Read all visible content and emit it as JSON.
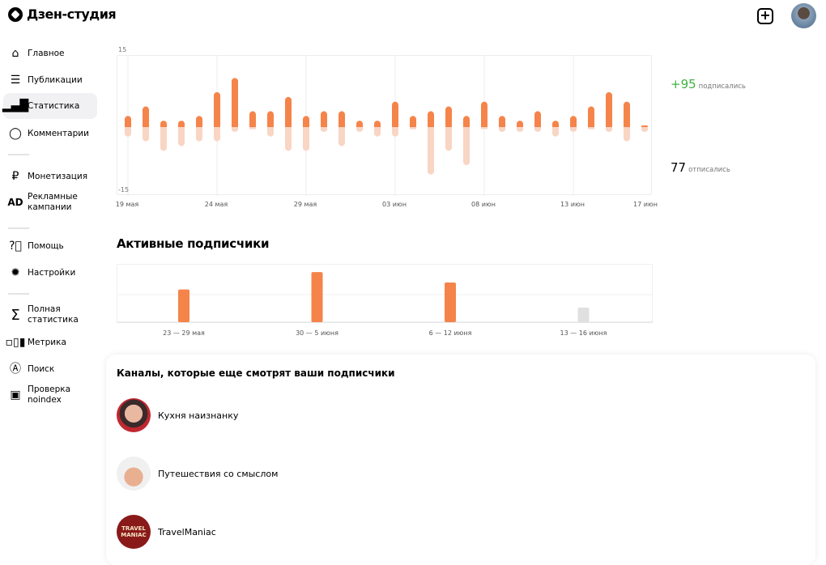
{
  "app": {
    "title": "Дзен-студия"
  },
  "sidebar": {
    "items": [
      {
        "label": "Главное",
        "icon": "home-icon"
      },
      {
        "label": "Публикации",
        "icon": "publications-icon"
      },
      {
        "label": "Статистика",
        "icon": "bar-chart-icon",
        "active": true
      },
      {
        "label": "Комментарии",
        "icon": "comment-icon"
      },
      {
        "label": "Монетизация",
        "icon": "ruble-icon"
      },
      {
        "label": "Рекламные кампании",
        "icon": "ad-icon"
      },
      {
        "label": "Помощь",
        "icon": "help-icon"
      },
      {
        "label": "Настройки",
        "icon": "gear-icon"
      },
      {
        "label": "Полная статистика",
        "icon": "sigma-icon"
      },
      {
        "label": "Метрика",
        "icon": "metrika-icon"
      },
      {
        "label": "Поиск",
        "icon": "search-icon"
      },
      {
        "label": "Проверка noindex",
        "icon": "noindex-icon"
      }
    ]
  },
  "header": {
    "add_icon": "plus-square-icon",
    "avatar": "user-avatar"
  },
  "summary": {
    "subscribed_value": "+95",
    "subscribed_label": "подписались",
    "unsubscribed_value": "77",
    "unsubscribed_label": "отписались",
    "subscribed_color": "#3fb142"
  },
  "chart_data": [
    {
      "type": "bar",
      "ylim": [
        -15,
        15
      ],
      "y_tick_labels": [
        "15",
        "-15"
      ],
      "x_tick_labels": [
        "19 мая",
        "24 мая",
        "29 мая",
        "03 июн",
        "08 июн",
        "13 июн",
        "17 июн"
      ],
      "categories": [
        "19 мая",
        "20 мая",
        "21 мая",
        "22 мая",
        "23 мая",
        "24 мая",
        "25 мая",
        "26 мая",
        "27 мая",
        "28 мая",
        "29 мая",
        "30 мая",
        "31 мая",
        "01 июн",
        "02 июн",
        "03 июн",
        "04 июн",
        "05 июн",
        "06 июн",
        "07 июн",
        "08 июн",
        "09 июн",
        "10 июн",
        "11 июн",
        "12 июн",
        "13 июн",
        "14 июн",
        "15 июн",
        "16 июн",
        "17 июн"
      ],
      "series": [
        {
          "values": [
            2,
            4,
            1,
            1,
            2,
            7,
            10,
            3,
            3,
            6,
            2,
            3,
            3,
            1,
            1,
            5,
            2,
            3,
            4,
            2,
            5,
            2,
            1,
            3,
            1,
            2,
            4,
            7,
            5,
            0
          ],
          "color": "#f5844a"
        },
        {
          "values": [
            -2,
            -3,
            -5,
            -4,
            -3,
            -3,
            -1,
            0,
            -2,
            -5,
            -5,
            -1,
            -4,
            -1,
            -2,
            -2,
            0,
            -10,
            -5,
            -8,
            0,
            -1,
            -1,
            -1,
            -2,
            -1,
            0,
            -1,
            -3,
            -1
          ],
          "color": "#f9d5c4"
        }
      ],
      "grid": "vertical"
    },
    {
      "type": "bar",
      "title": "Активные подписчики",
      "categories": [
        "23 — 29 мая",
        "30 — 5 июня",
        "6 — 12 июня",
        "13 — 16 июня"
      ],
      "values": [
        56,
        86,
        68,
        25
      ],
      "colors": [
        "#f5844a",
        "#f5844a",
        "#f5844a",
        "#e0e0e0"
      ],
      "grid": "horizontal"
    }
  ],
  "channels": {
    "title": "Каналы, которые еще смотрят ваши подписчики",
    "items": [
      {
        "name": "Кухня наизнанку"
      },
      {
        "name": "Путешествия со смыслом"
      },
      {
        "name": "TravelManiac",
        "logo_text": "TRAVEL MANIAC"
      }
    ]
  }
}
